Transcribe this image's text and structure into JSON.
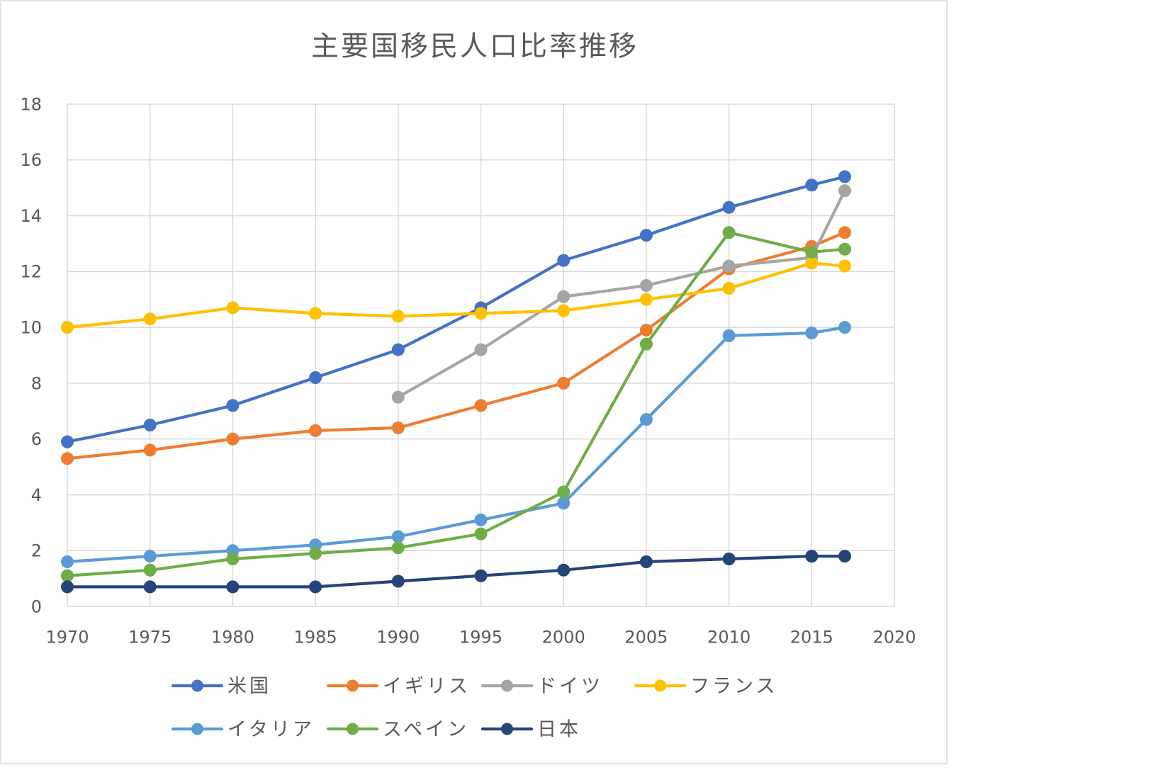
{
  "chart_data": {
    "type": "line",
    "title": "主要国移民人口比率推移",
    "xlim": [
      1970,
      2020
    ],
    "ylim": [
      0,
      18
    ],
    "xticks": [
      1970,
      1975,
      1980,
      1985,
      1990,
      1995,
      2000,
      2005,
      2010,
      2015,
      2020
    ],
    "yticks": [
      0,
      2,
      4,
      6,
      8,
      10,
      12,
      14,
      16,
      18
    ],
    "grid": true,
    "legend": "bottom",
    "x": [
      1970,
      1975,
      1980,
      1985,
      1990,
      1995,
      2000,
      2005,
      2010,
      2015,
      2017
    ],
    "series": [
      {
        "name": "米国",
        "color": "#4472C4",
        "values": [
          5.9,
          6.5,
          7.2,
          8.2,
          9.2,
          10.7,
          12.4,
          13.3,
          14.3,
          15.1,
          15.4
        ]
      },
      {
        "name": "イギリス",
        "color": "#ED7D31",
        "values": [
          5.3,
          5.6,
          6.0,
          6.3,
          6.4,
          7.2,
          8.0,
          9.9,
          12.1,
          12.9,
          13.4
        ]
      },
      {
        "name": "ドイツ",
        "color": "#A5A5A5",
        "values": [
          null,
          null,
          null,
          null,
          7.5,
          9.2,
          11.1,
          11.5,
          12.2,
          12.5,
          14.9
        ]
      },
      {
        "name": "フランス",
        "color": "#FFC000",
        "values": [
          10.0,
          10.3,
          10.7,
          10.5,
          10.4,
          10.5,
          10.6,
          11.0,
          11.4,
          12.3,
          12.2
        ]
      },
      {
        "name": "イタリア",
        "color": "#5B9BD5",
        "values": [
          1.6,
          1.8,
          2.0,
          2.2,
          2.5,
          3.1,
          3.7,
          6.7,
          9.7,
          9.8,
          10.0
        ]
      },
      {
        "name": "スペイン",
        "color": "#70AD47",
        "values": [
          1.1,
          1.3,
          1.7,
          1.9,
          2.1,
          2.6,
          4.1,
          9.4,
          13.4,
          12.7,
          12.8
        ]
      },
      {
        "name": "日本",
        "color": "#264478",
        "values": [
          0.7,
          0.7,
          0.7,
          0.7,
          0.9,
          1.1,
          1.3,
          1.6,
          1.7,
          1.8,
          1.8
        ]
      }
    ]
  }
}
